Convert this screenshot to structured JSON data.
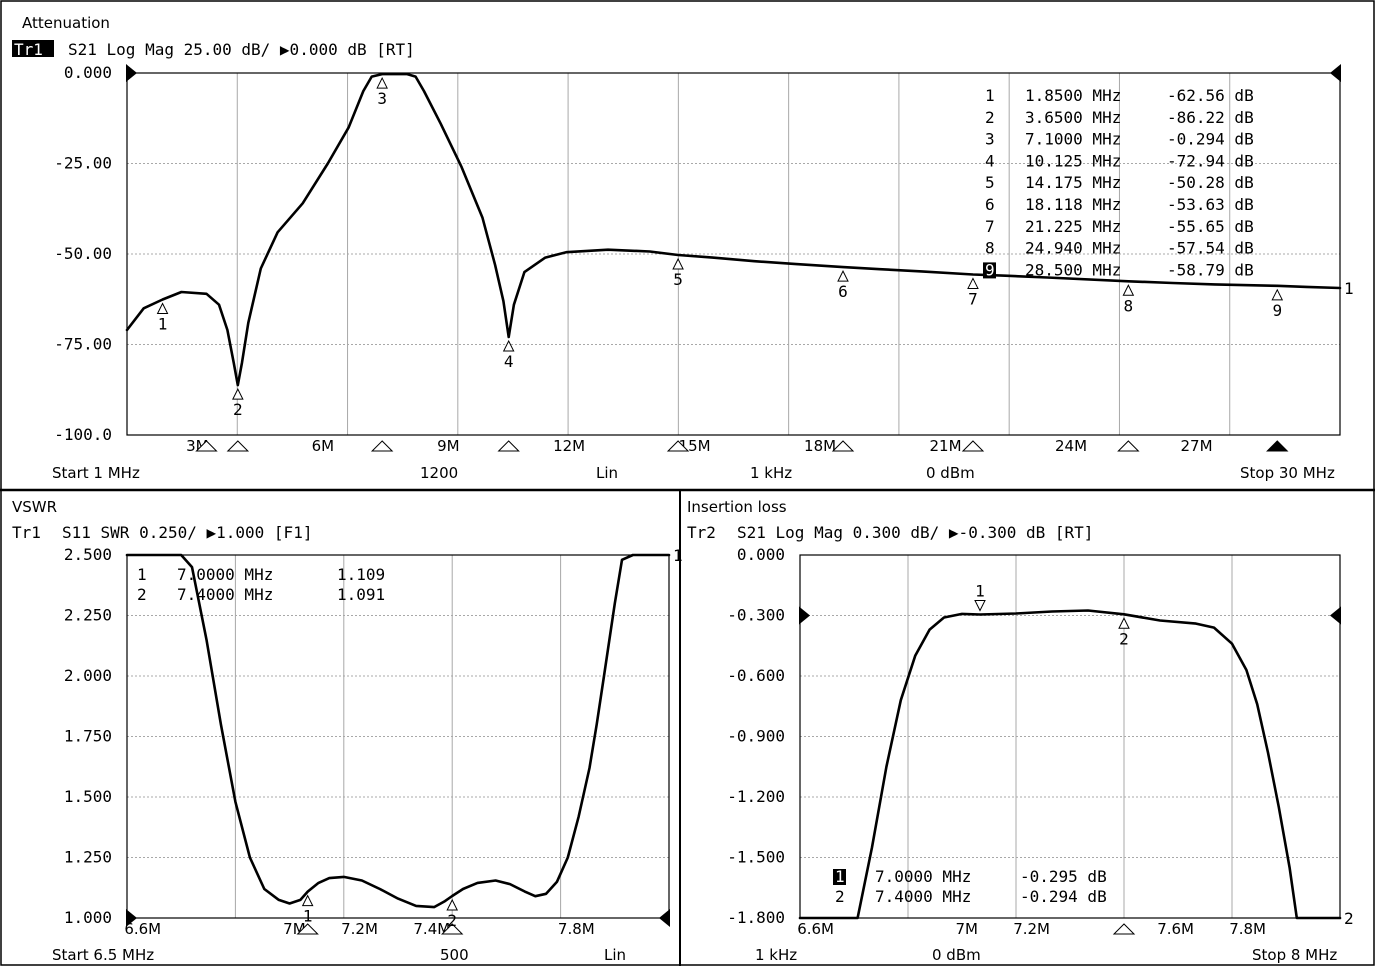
{
  "colors": {
    "background": "#ffffff",
    "foreground": "#000000",
    "grid": "#a8a8a8"
  },
  "chart_data": [
    {
      "type": "line",
      "title": "Attenuation",
      "trace_label": "Tr1",
      "trace_header": "S21 Log Mag 25.00 dB/ ▶0.000 dB [RT]",
      "xlim": [
        1,
        30
      ],
      "ylim": [
        -100,
        0
      ],
      "y_ticks": [
        0,
        -25,
        -50,
        -75,
        -100
      ],
      "y_tick_labels": [
        "0.000",
        "-25.00",
        "-50.00",
        "-75.00",
        "-100.0"
      ],
      "x_ticks": [
        3,
        6,
        9,
        12,
        15,
        18,
        21,
        24,
        27
      ],
      "x_tick_labels": [
        "3M",
        "6M",
        "9M",
        "12M",
        "15M",
        "18M",
        "21M",
        "24M",
        "27M"
      ],
      "reference_level": 0,
      "right_marker_label": "1",
      "footer": [
        "Start 1 MHz",
        "1200",
        "Lin",
        "1 kHz",
        "0 dBm",
        "Stop 30 MHz"
      ],
      "markers": [
        {
          "id": "1",
          "freq": "1.8500 MHz",
          "value": "-62.56 dB",
          "x": 1.85,
          "y": -62.56
        },
        {
          "id": "2",
          "freq": "3.6500 MHz",
          "value": "-86.22 dB",
          "x": 3.65,
          "y": -86.22
        },
        {
          "id": "3",
          "freq": "7.1000 MHz",
          "value": "-0.294 dB",
          "x": 7.1,
          "y": -0.294
        },
        {
          "id": "4",
          "freq": "10.125 MHz",
          "value": "-72.94 dB",
          "x": 10.125,
          "y": -72.94
        },
        {
          "id": "5",
          "freq": "14.175 MHz",
          "value": "-50.28 dB",
          "x": 14.175,
          "y": -50.28
        },
        {
          "id": "6",
          "freq": "18.118 MHz",
          "value": "-53.63 dB",
          "x": 18.118,
          "y": -53.63
        },
        {
          "id": "7",
          "freq": "21.225 MHz",
          "value": "-55.65 dB",
          "x": 21.225,
          "y": -55.65
        },
        {
          "id": "8",
          "freq": "24.940 MHz",
          "value": "-57.54 dB",
          "x": 24.94,
          "y": -57.54
        },
        {
          "id": "9",
          "freq": "28.500 MHz",
          "value": "-58.79 dB",
          "x": 28.5,
          "y": -58.79,
          "active": true
        }
      ],
      "series": [
        {
          "x": [
            1.0,
            1.4,
            1.85,
            2.3,
            2.9,
            3.2,
            3.4,
            3.55,
            3.65,
            3.75,
            3.9,
            4.2,
            4.6,
            5.2,
            5.8,
            6.3,
            6.65,
            6.85,
            7.1,
            7.4,
            7.7,
            7.9,
            8.1,
            8.5,
            9.0,
            9.5,
            9.8,
            10.0,
            10.125,
            10.25,
            10.5,
            11.0,
            11.5,
            12.5,
            13.5,
            14.175,
            15.0,
            16.0,
            17.0,
            18.118,
            19.0,
            20.0,
            21.225,
            22.0,
            23.0,
            24.94,
            26.0,
            27.0,
            28.5,
            29.2,
            30.0
          ],
          "y": [
            -71,
            -65,
            -62.56,
            -60.5,
            -61,
            -64,
            -71,
            -80,
            -86.22,
            -80,
            -69,
            -54,
            -44,
            -36,
            -25,
            -15,
            -5,
            -1,
            -0.294,
            -0.3,
            -0.3,
            -1,
            -5,
            -14,
            -26,
            -40,
            -53,
            -63,
            -72.94,
            -64,
            -55,
            -51,
            -49.5,
            -48.8,
            -49.3,
            -50.28,
            -51,
            -52,
            -52.8,
            -53.63,
            -54.2,
            -54.8,
            -55.65,
            -56,
            -56.5,
            -57.54,
            -58,
            -58.4,
            -58.79,
            -59.1,
            -59.4
          ]
        }
      ]
    },
    {
      "type": "line",
      "title": "VSWR",
      "trace_label": "Tr1",
      "trace_header": "S11 SWR 0.250/ ▶1.000 [F1]",
      "xlim": [
        6.5,
        8.0
      ],
      "ylim": [
        1.0,
        2.5
      ],
      "y_ticks": [
        2.5,
        2.25,
        2.0,
        1.75,
        1.5,
        1.25,
        1.0
      ],
      "y_tick_labels": [
        "2.500",
        "2.250",
        "2.000",
        "1.750",
        "1.500",
        "1.250",
        "1.000"
      ],
      "x_ticks": [
        6.6,
        7.0,
        7.2,
        7.4,
        7.8
      ],
      "x_tick_labels": [
        "6.6M",
        "7M",
        "7.2M",
        "7.4M",
        "7.8M"
      ],
      "reference_level": 1.0,
      "right_marker_label": "1",
      "footer": [
        "Start 6.5 MHz",
        "500",
        "Lin"
      ],
      "markers": [
        {
          "id": "1",
          "freq": "7.0000 MHz",
          "value": "1.109",
          "x": 7.0,
          "y": 1.109
        },
        {
          "id": "2",
          "freq": "7.4000 MHz",
          "value": "1.091",
          "x": 7.4,
          "y": 1.091
        }
      ],
      "series": [
        {
          "x": [
            6.5,
            6.6,
            6.65,
            6.68,
            6.72,
            6.76,
            6.8,
            6.84,
            6.88,
            6.92,
            6.95,
            6.98,
            7.0,
            7.03,
            7.06,
            7.1,
            7.15,
            7.2,
            7.25,
            7.3,
            7.35,
            7.38,
            7.4,
            7.43,
            7.47,
            7.52,
            7.56,
            7.6,
            7.63,
            7.66,
            7.69,
            7.72,
            7.75,
            7.78,
            7.8,
            7.82,
            7.85,
            7.87,
            7.9,
            8.0
          ],
          "y": [
            2.5,
            2.5,
            2.5,
            2.45,
            2.15,
            1.8,
            1.48,
            1.25,
            1.12,
            1.075,
            1.06,
            1.075,
            1.109,
            1.145,
            1.165,
            1.17,
            1.155,
            1.12,
            1.08,
            1.05,
            1.045,
            1.07,
            1.091,
            1.12,
            1.145,
            1.155,
            1.14,
            1.11,
            1.09,
            1.1,
            1.15,
            1.25,
            1.42,
            1.62,
            1.8,
            2.0,
            2.3,
            2.48,
            2.5,
            2.5
          ]
        }
      ]
    },
    {
      "type": "line",
      "title": "Insertion loss",
      "trace_label": "Tr2",
      "trace_header": "S21 Log Mag 0.300 dB/ ▶-0.300 dB [RT]",
      "xlim": [
        6.5,
        8.0
      ],
      "ylim": [
        -1.8,
        0.0
      ],
      "y_ticks": [
        0.0,
        -0.3,
        -0.6,
        -0.9,
        -1.2,
        -1.5,
        -1.8
      ],
      "y_tick_labels": [
        "0.000",
        "-0.300",
        "-0.600",
        "-0.900",
        "-1.200",
        "-1.500",
        "-1.800"
      ],
      "x_ticks": [
        6.6,
        7.0,
        7.2,
        7.6,
        7.8
      ],
      "x_tick_labels": [
        "6.6M",
        "7M",
        "7.2M",
        "7.6M",
        "7.8M"
      ],
      "reference_level": -0.3,
      "right_marker_label": "2",
      "footer": [
        "1 kHz",
        "0 dBm",
        "Stop 8 MHz"
      ],
      "markers": [
        {
          "id": "1",
          "freq": "7.0000 MHz",
          "value": "-0.295 dB",
          "x": 7.0,
          "y": -0.295,
          "active": true
        },
        {
          "id": "2",
          "freq": "7.4000 MHz",
          "value": "-0.294 dB",
          "x": 7.4,
          "y": -0.294
        }
      ],
      "series": [
        {
          "x": [
            6.5,
            6.6,
            6.66,
            6.7,
            6.74,
            6.78,
            6.82,
            6.86,
            6.9,
            6.95,
            7.0,
            7.1,
            7.2,
            7.3,
            7.4,
            7.5,
            7.6,
            7.65,
            7.7,
            7.74,
            7.77,
            7.8,
            7.83,
            7.86,
            7.88,
            7.9,
            8.0
          ],
          "y": [
            -1.8,
            -1.8,
            -1.8,
            -1.45,
            -1.05,
            -0.72,
            -0.5,
            -0.37,
            -0.31,
            -0.292,
            -0.295,
            -0.29,
            -0.28,
            -0.275,
            -0.294,
            -0.325,
            -0.34,
            -0.36,
            -0.44,
            -0.57,
            -0.74,
            -0.98,
            -1.25,
            -1.55,
            -1.8,
            -1.8,
            -1.8
          ]
        }
      ]
    }
  ]
}
